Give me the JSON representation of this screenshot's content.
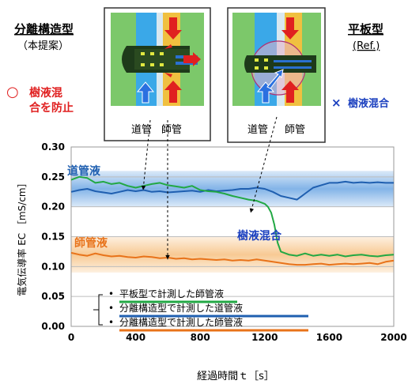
{
  "header": {
    "left_title": "分離構造型",
    "left_subtitle": "（本提案）",
    "right_title": "平板型",
    "right_subtitle": "(Ref.)",
    "left_mark": "○",
    "left_note_line1": "樹液混",
    "left_note_line2": "合を防止",
    "right_mark": "×",
    "right_note": "樹液混合",
    "inset_left_label1": "道管",
    "inset_left_label2": "師管",
    "inset_right_label1": "道管",
    "inset_right_label2": "師管"
  },
  "colors": {
    "xylem_series": "#1f5fb0",
    "phloem_series": "#e8731a",
    "flat_series": "#22a844",
    "xylem_band": "#5a9be0",
    "phloem_band": "#f5b870",
    "mark_good": "#e02020",
    "mark_bad": "#1a3fbf"
  },
  "chart_data": {
    "type": "line",
    "xlabel": "経過時間ｔ［s］",
    "ylabel": "電気伝導率 EC ［mS/cm］",
    "xlim": [
      0,
      2000
    ],
    "ylim": [
      0,
      0.3
    ],
    "xticks": [
      "0",
      "400",
      "800",
      "1200",
      "1600",
      "2000"
    ],
    "yticks": [
      "0.00",
      "0.05",
      "0.10",
      "0.15",
      "0.20",
      "0.25",
      "0.30"
    ],
    "grid": true,
    "annotations": {
      "xylem_label": "道管液",
      "phloem_label": "師管液",
      "mixing_label": "樹液混合"
    },
    "legend": [
      "平板型で計測した師管液",
      "分離構造型で計測した道管液",
      "分離構造型で計測した師管液"
    ],
    "legend_bullet": "•",
    "bands": [
      {
        "name": "道管液",
        "range": [
          0.2,
          0.26
        ]
      },
      {
        "name": "師管液",
        "range": [
          0.09,
          0.15
        ]
      }
    ],
    "series": [
      {
        "name": "平板型で計測した師管液",
        "x": [
          0,
          50,
          100,
          150,
          200,
          250,
          300,
          350,
          400,
          450,
          500,
          550,
          600,
          650,
          700,
          750,
          800,
          850,
          900,
          950,
          1000,
          1050,
          1100,
          1150,
          1200,
          1220,
          1240,
          1260,
          1280,
          1300,
          1350,
          1400,
          1450,
          1500,
          1550,
          1600,
          1650,
          1700,
          1750,
          1800,
          1850,
          1900,
          1950,
          2000
        ],
        "y": [
          0.245,
          0.25,
          0.248,
          0.24,
          0.242,
          0.238,
          0.24,
          0.235,
          0.232,
          0.235,
          0.238,
          0.24,
          0.236,
          0.234,
          0.232,
          0.235,
          0.228,
          0.226,
          0.225,
          0.222,
          0.218,
          0.215,
          0.212,
          0.21,
          0.205,
          0.2,
          0.19,
          0.17,
          0.14,
          0.125,
          0.12,
          0.118,
          0.122,
          0.118,
          0.12,
          0.118,
          0.12,
          0.117,
          0.119,
          0.12,
          0.118,
          0.117,
          0.119,
          0.12
        ]
      },
      {
        "name": "分離構造型で計測した道管液",
        "x": [
          0,
          50,
          100,
          150,
          200,
          250,
          300,
          350,
          400,
          450,
          500,
          550,
          600,
          650,
          700,
          750,
          800,
          850,
          900,
          950,
          1000,
          1050,
          1100,
          1150,
          1200,
          1250,
          1300,
          1350,
          1400,
          1450,
          1500,
          1550,
          1600,
          1650,
          1700,
          1750,
          1800,
          1850,
          1900,
          1950,
          2000
        ],
        "y": [
          0.225,
          0.228,
          0.23,
          0.226,
          0.224,
          0.222,
          0.225,
          0.228,
          0.226,
          0.228,
          0.225,
          0.226,
          0.224,
          0.225,
          0.226,
          0.227,
          0.225,
          0.228,
          0.226,
          0.227,
          0.228,
          0.23,
          0.23,
          0.232,
          0.23,
          0.225,
          0.218,
          0.215,
          0.212,
          0.222,
          0.232,
          0.236,
          0.24,
          0.24,
          0.242,
          0.24,
          0.241,
          0.24,
          0.241,
          0.24,
          0.24
        ]
      },
      {
        "name": "分離構造型で計測した師管液",
        "x": [
          0,
          50,
          100,
          150,
          200,
          250,
          300,
          350,
          400,
          450,
          500,
          550,
          600,
          650,
          700,
          750,
          800,
          850,
          900,
          950,
          1000,
          1050,
          1100,
          1150,
          1200,
          1250,
          1300,
          1350,
          1400,
          1450,
          1500,
          1550,
          1600,
          1650,
          1700,
          1750,
          1800,
          1850,
          1900,
          1950,
          2000
        ],
        "y": [
          0.123,
          0.12,
          0.118,
          0.122,
          0.119,
          0.117,
          0.118,
          0.116,
          0.115,
          0.117,
          0.116,
          0.114,
          0.115,
          0.113,
          0.114,
          0.112,
          0.113,
          0.112,
          0.111,
          0.112,
          0.11,
          0.111,
          0.11,
          0.112,
          0.11,
          0.108,
          0.106,
          0.104,
          0.103,
          0.103,
          0.104,
          0.105,
          0.103,
          0.104,
          0.105,
          0.104,
          0.105,
          0.106,
          0.104,
          0.108,
          0.11
        ]
      }
    ]
  }
}
